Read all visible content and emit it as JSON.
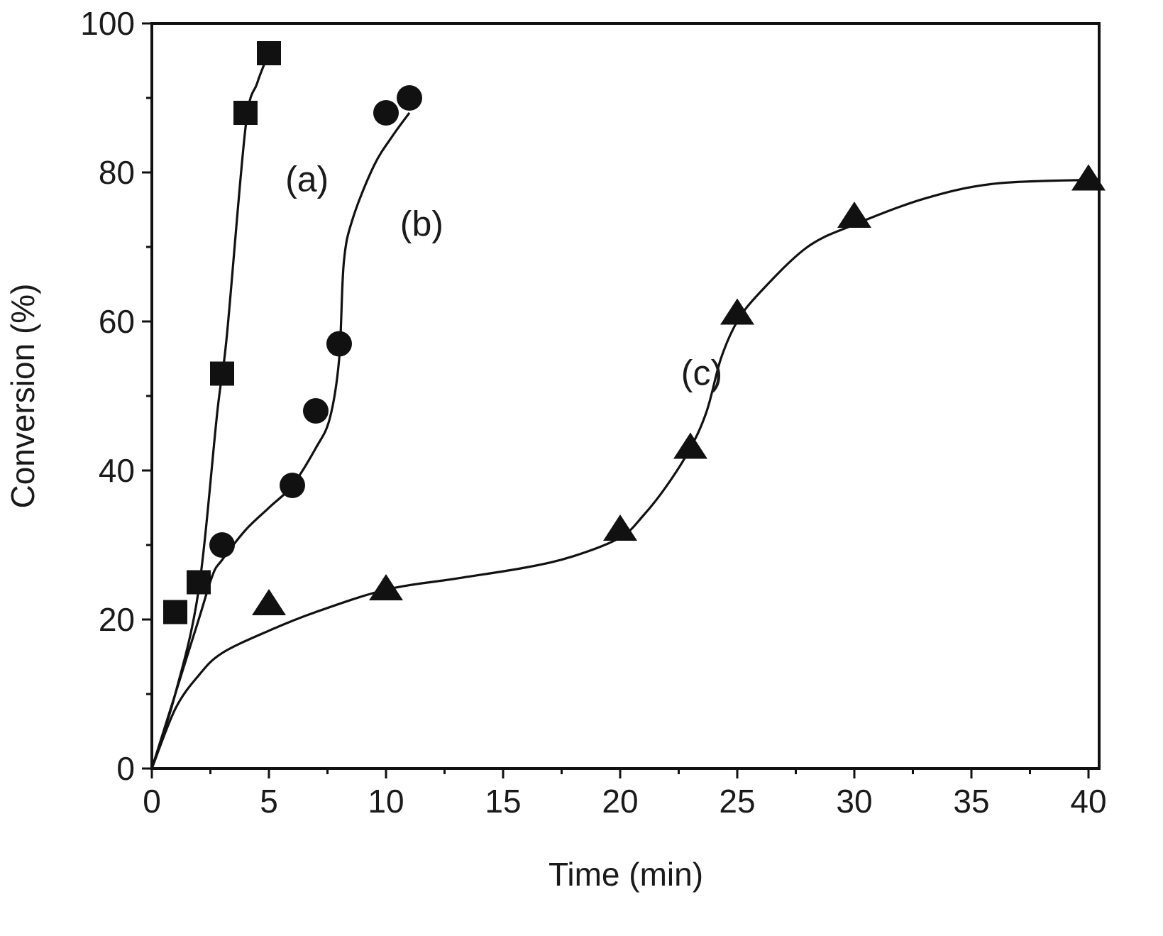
{
  "chart_data": {
    "type": "scatter",
    "title": "",
    "xlabel": "Time (min)",
    "ylabel": "Conversion (%)",
    "xlim": [
      0,
      40
    ],
    "ylim": [
      0,
      100
    ],
    "xticks": [
      0,
      5,
      10,
      15,
      20,
      25,
      30,
      35,
      40
    ],
    "xtick_labels": [
      "0",
      "5",
      "10",
      "15",
      "20",
      "25",
      "30",
      "35",
      "40"
    ],
    "yticks": [
      0,
      20,
      40,
      60,
      80,
      100
    ],
    "ytick_labels": [
      "0",
      "20",
      "40",
      "60",
      "80",
      "100"
    ],
    "grid": false,
    "series": [
      {
        "name": "(a)",
        "marker": "square",
        "points": [
          [
            1,
            21
          ],
          [
            2,
            25
          ],
          [
            3,
            53
          ],
          [
            4,
            88
          ],
          [
            5,
            96
          ]
        ],
        "fit_curve": [
          [
            0,
            0
          ],
          [
            1,
            10
          ],
          [
            2,
            24
          ],
          [
            2.8,
            48
          ],
          [
            3.2,
            58
          ],
          [
            4,
            86
          ],
          [
            4.5,
            92
          ],
          [
            5,
            96
          ]
        ]
      },
      {
        "name": "(b)",
        "marker": "circle",
        "points": [
          [
            3,
            30
          ],
          [
            6,
            38
          ],
          [
            7,
            48
          ],
          [
            8,
            57
          ],
          [
            10,
            88
          ],
          [
            11,
            90
          ]
        ],
        "fit_curve": [
          [
            0,
            0
          ],
          [
            1,
            10
          ],
          [
            2,
            20
          ],
          [
            2.6,
            26
          ],
          [
            3,
            28
          ],
          [
            4,
            32
          ],
          [
            5,
            35
          ],
          [
            6,
            38
          ],
          [
            7,
            43
          ],
          [
            7.6,
            47
          ],
          [
            8,
            55
          ],
          [
            8.2,
            68
          ],
          [
            8.6,
            74
          ],
          [
            9.5,
            81
          ],
          [
            10.3,
            85
          ],
          [
            11,
            88
          ]
        ]
      },
      {
        "name": "(c)",
        "marker": "triangle",
        "points": [
          [
            5,
            22
          ],
          [
            10,
            24
          ],
          [
            20,
            32
          ],
          [
            23,
            43
          ],
          [
            25,
            61
          ],
          [
            30,
            74
          ],
          [
            40,
            79
          ]
        ],
        "fit_curve": [
          [
            0,
            0
          ],
          [
            1,
            8
          ],
          [
            2,
            12.5
          ],
          [
            3,
            15.5
          ],
          [
            5,
            18.5
          ],
          [
            7,
            21
          ],
          [
            10,
            24
          ],
          [
            13,
            25.5
          ],
          [
            16,
            27
          ],
          [
            18,
            28.5
          ],
          [
            20,
            31
          ],
          [
            21,
            34
          ],
          [
            22,
            38
          ],
          [
            23,
            43
          ],
          [
            23.7,
            48
          ],
          [
            24.3,
            55
          ],
          [
            25,
            60
          ],
          [
            26,
            64
          ],
          [
            28,
            70
          ],
          [
            30,
            73
          ],
          [
            33,
            76.5
          ],
          [
            36,
            78.5
          ],
          [
            40,
            79
          ]
        ]
      }
    ],
    "curve_labels": [
      {
        "text": "(a)",
        "x": 5.7,
        "y": 77.5
      },
      {
        "text": "(b)",
        "x": 10.6,
        "y": 71.5
      },
      {
        "text": "(c)",
        "x": 22.6,
        "y": 51.5
      }
    ]
  }
}
